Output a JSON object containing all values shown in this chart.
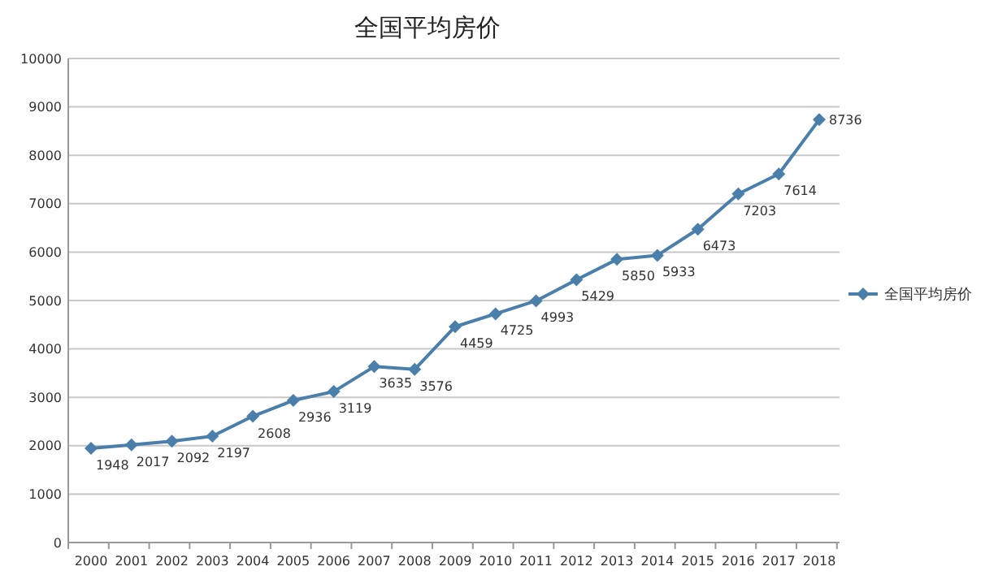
{
  "chart_data": {
    "type": "line",
    "title": "全国平均房价",
    "categories": [
      "2000",
      "2001",
      "2002",
      "2003",
      "2004",
      "2005",
      "2006",
      "2007",
      "2008",
      "2009",
      "2010",
      "2011",
      "2012",
      "2013",
      "2014",
      "2015",
      "2016",
      "2017",
      "2018"
    ],
    "series": [
      {
        "name": "全国平均房价",
        "color": "#4a7eab",
        "values": [
          1948,
          2017,
          2092,
          2197,
          2608,
          2936,
          3119,
          3635,
          3576,
          4459,
          4725,
          4993,
          5429,
          5850,
          5933,
          6473,
          7203,
          7614,
          8736
        ]
      }
    ],
    "ylim": [
      0,
      10000
    ],
    "yticks": [
      0,
      1000,
      2000,
      3000,
      4000,
      5000,
      6000,
      7000,
      8000,
      9000,
      10000
    ],
    "grid": "y",
    "legend": "right",
    "marker": "diamond",
    "data_labels": true
  }
}
